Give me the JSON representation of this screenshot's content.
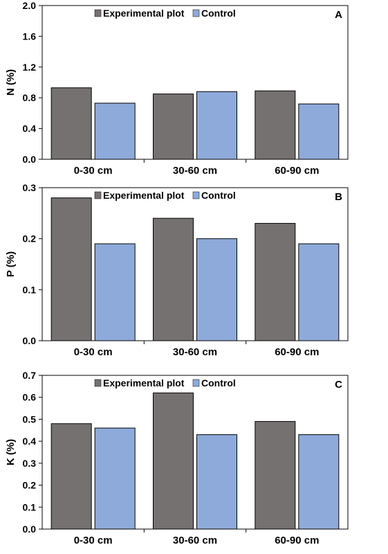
{
  "colors": {
    "experimental": "#767171",
    "control": "#8eaadb",
    "axis": "#000000"
  },
  "chart_data": [
    {
      "type": "bar",
      "panel_label": "A",
      "ylabel": "N (%)",
      "categories": [
        "0-30 cm",
        "30-60 cm",
        "60-90 cm"
      ],
      "ylim": [
        0,
        2.0
      ],
      "yticks": [
        "0.0",
        "0.4",
        "0.8",
        "1.2",
        "1.6",
        "2.0"
      ],
      "legend_position": "top-left",
      "series": [
        {
          "name": "Experimental plot",
          "values": [
            0.93,
            0.85,
            0.89
          ]
        },
        {
          "name": "Control",
          "values": [
            0.73,
            0.88,
            0.72
          ]
        }
      ]
    },
    {
      "type": "bar",
      "panel_label": "B",
      "ylabel": "P (%)",
      "categories": [
        "0-30 cm",
        "30-60 cm",
        "60-90 cm"
      ],
      "ylim": [
        0,
        0.3
      ],
      "yticks": [
        "0.0",
        "0.1",
        "0.2",
        "0.3"
      ],
      "legend_position": "top-left",
      "series": [
        {
          "name": "Experimental plot",
          "values": [
            0.28,
            0.24,
            0.23
          ]
        },
        {
          "name": "Control",
          "values": [
            0.19,
            0.2,
            0.19
          ]
        }
      ]
    },
    {
      "type": "bar",
      "panel_label": "C",
      "ylabel": "K (%)",
      "categories": [
        "0-30 cm",
        "30-60 cm",
        "60-90 cm"
      ],
      "ylim": [
        0,
        0.7
      ],
      "yticks": [
        "0.0",
        "0.1",
        "0.2",
        "0.3",
        "0.4",
        "0.5",
        "0.6",
        "0.7"
      ],
      "legend_position": "top-left",
      "series": [
        {
          "name": "Experimental plot",
          "values": [
            0.48,
            0.62,
            0.49
          ]
        },
        {
          "name": "Control",
          "values": [
            0.46,
            0.43,
            0.43
          ]
        }
      ]
    }
  ]
}
